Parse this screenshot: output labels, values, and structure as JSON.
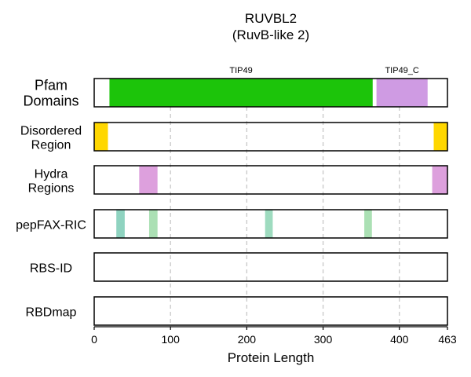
{
  "chart_data": {
    "type": "track",
    "title": "RUVBL2",
    "subtitle": "(RuvB-like 2)",
    "xlabel": "Protein Length",
    "xlim": [
      0,
      463
    ],
    "xticks": [
      0,
      100,
      200,
      300,
      400,
      463
    ],
    "grid": "vertical dashed at 100, 200, 300, 400",
    "tracks": [
      {
        "label": [
          "Pfam",
          "Domains"
        ],
        "segments": [
          {
            "start": 20,
            "end": 365,
            "color": "#1cc40a",
            "label": "TIP49"
          },
          {
            "start": 370,
            "end": 437,
            "color": "#cf9be3",
            "label": "TIP49_C"
          }
        ]
      },
      {
        "label": [
          "Disordered",
          "Region"
        ],
        "segments": [
          {
            "start": 0,
            "end": 18,
            "color": "#ffd700"
          },
          {
            "start": 445,
            "end": 463,
            "color": "#ffd700"
          }
        ]
      },
      {
        "label": [
          "Hydra",
          "Regions"
        ],
        "segments": [
          {
            "start": 59,
            "end": 83,
            "color": "#dda0dd"
          },
          {
            "start": 443,
            "end": 463,
            "color": "#dda0dd"
          }
        ]
      },
      {
        "label": [
          "pepFAX-RIC"
        ],
        "segments": [
          {
            "start": 29,
            "end": 40,
            "color": "#8fd3c0"
          },
          {
            "start": 72,
            "end": 83,
            "color": "#abe0b4"
          },
          {
            "start": 224,
            "end": 234,
            "color": "#9edbbf"
          },
          {
            "start": 354,
            "end": 364,
            "color": "#abe0b4"
          }
        ]
      },
      {
        "label": [
          "RBS-ID"
        ],
        "segments": []
      },
      {
        "label": [
          "RBDmap"
        ],
        "segments": []
      }
    ]
  }
}
